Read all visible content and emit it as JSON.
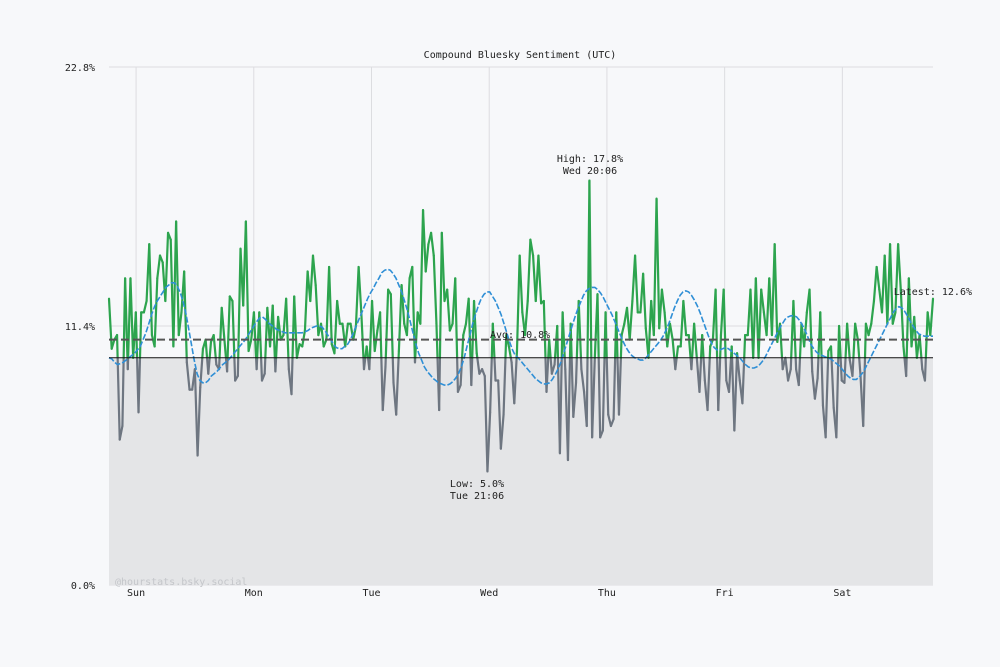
{
  "chart_data": {
    "type": "line",
    "title": "Compound Bluesky Sentiment (UTC)",
    "xlabel": "",
    "ylabel": "",
    "ylim": [
      0,
      22.8
    ],
    "y_ticks": [
      "0.0%",
      "11.4%",
      "22.8%"
    ],
    "x_ticks": [
      "Sun",
      "Mon",
      "Tue",
      "Wed",
      "Thu",
      "Fri",
      "Sat"
    ],
    "x_range_days": [
      -0.23,
      6.77
    ],
    "baseline_value": 10.0,
    "grid": true,
    "watermark": "@hourstats.bsky.social",
    "annotations": {
      "high": {
        "label": "High: 17.8%",
        "time": "Wed 20:06",
        "value": 17.8
      },
      "low": {
        "label": "Low: 5.0%",
        "time": "Tue 21:06",
        "value": 5.0
      },
      "avg": {
        "label": "Avg: 10.8%",
        "value": 10.8
      },
      "latest": {
        "label": "Latest: 12.6%",
        "value": 12.6
      }
    },
    "colors": {
      "above_baseline": "#2da44e",
      "below_baseline": "#6e7681",
      "moving_average": "#2f8fd6",
      "avg_line": "#555555",
      "baseline_line": "#111111",
      "fill": "#e4e5e7"
    },
    "series": [
      {
        "values": [
          12.6,
          10.4,
          10.8,
          11.0,
          6.4,
          7.0,
          13.5,
          9.5,
          13.5,
          10.0,
          12.0,
          7.6,
          12.0,
          12.0,
          12.5,
          15.0,
          11.0,
          10.5,
          13.5,
          14.5,
          14.2,
          12.5,
          15.5,
          15.2,
          10.5,
          16.0,
          11.0,
          12.0,
          13.8,
          9.8,
          8.6,
          8.6,
          9.5,
          5.7,
          8.7,
          10.4,
          10.8,
          9.3,
          10.7,
          11.0,
          9.7,
          9.5,
          12.2,
          10.8,
          9.4,
          12.7,
          12.5,
          9.0,
          9.2,
          14.8,
          12.3,
          16.0,
          10.3,
          10.8,
          12.0,
          9.5,
          12.0,
          9.0,
          9.3,
          12.2,
          10.5,
          12.3,
          9.4,
          11.8,
          10.8,
          11.0,
          12.6,
          9.5,
          8.4,
          12.7,
          10.0,
          10.6,
          10.5,
          11.2,
          13.8,
          12.5,
          14.5,
          13.2,
          11.0,
          11.5,
          10.5,
          10.8,
          14.0,
          10.6,
          10.2,
          12.5,
          11.5,
          11.5,
          10.5,
          11.5,
          11.5,
          10.8,
          11.4,
          14.0,
          12.0,
          9.5,
          10.5,
          9.5,
          12.5,
          10.3,
          11.2,
          12.0,
          7.7,
          9.6,
          13.0,
          12.8,
          8.9,
          7.5,
          10.3,
          13.2,
          11.5,
          11.0,
          13.5,
          14.0,
          9.8,
          12.0,
          11.5,
          16.5,
          13.8,
          15.0,
          15.5,
          14.5,
          11.5,
          7.7,
          15.5,
          12.5,
          13.0,
          11.2,
          11.5,
          13.5,
          8.5,
          8.8,
          11.0,
          11.5,
          12.6,
          8.8,
          12.5,
          10.2,
          9.3,
          9.5,
          9.2,
          5.0,
          7.6,
          11.5,
          9.0,
          9.0,
          6.0,
          7.5,
          11.0,
          10.5,
          9.8,
          8.0,
          10.3,
          14.5,
          12.0,
          11.0,
          12.5,
          15.2,
          14.5,
          12.5,
          14.5,
          12.4,
          12.5,
          8.5,
          10.8,
          9.3,
          9.7,
          11.4,
          5.8,
          12.0,
          9.5,
          5.5,
          11.5,
          7.4,
          8.9,
          12.5,
          9.5,
          8.5,
          7.0,
          17.8,
          6.5,
          10.0,
          12.8,
          6.5,
          6.8,
          12.0,
          7.5,
          7.0,
          7.3,
          12.0,
          7.5,
          11.0,
          11.5,
          12.2,
          10.8,
          12.5,
          14.5,
          12.0,
          12.0,
          13.7,
          11.3,
          10.0,
          12.5,
          11.0,
          17.0,
          11.3,
          13.0,
          12.0,
          10.5,
          11.5,
          10.8,
          9.5,
          10.5,
          10.5,
          12.5,
          11.0,
          11.0,
          9.5,
          11.5,
          10.0,
          8.5,
          11.0,
          9.0,
          7.7,
          10.5,
          10.8,
          13.0,
          7.7,
          11.0,
          13.0,
          9.0,
          8.5,
          10.5,
          6.8,
          10.2,
          9.0,
          8.0,
          11.0,
          11.0,
          13.0,
          10.0,
          13.5,
          10.0,
          13.0,
          12.0,
          11.0,
          13.5,
          11.0,
          15.0,
          10.7,
          11.5,
          9.5,
          10.0,
          9.0,
          9.5,
          12.5,
          9.5,
          8.8,
          11.5,
          10.5,
          12.0,
          13.0,
          9.4,
          8.2,
          9.1,
          12.0,
          7.9,
          6.5,
          10.3,
          10.5,
          7.8,
          6.5,
          11.4,
          9.0,
          8.9,
          11.5,
          9.9,
          9.2,
          11.5,
          10.8,
          9.2,
          7.0,
          11.5,
          11.0,
          11.5,
          12.5,
          14.0,
          13.0,
          12.0,
          14.5,
          11.5,
          15.0,
          11.5,
          12.0,
          15.0,
          13.0,
          10.5,
          9.2,
          13.5,
          10.5,
          11.8,
          10.0,
          11.0,
          9.5,
          9.0,
          12.0,
          11.0,
          12.6
        ],
        "moving_average": [
          10.0,
          9.95,
          9.8,
          9.7,
          9.75,
          9.8,
          9.9,
          10.0,
          10.1,
          10.2,
          10.35,
          10.5,
          10.8,
          11.1,
          11.5,
          11.9,
          12.25,
          12.5,
          12.7,
          12.9,
          13.1,
          13.2,
          13.3,
          13.3,
          13.15,
          12.9,
          12.5,
          12.0,
          11.3,
          10.6,
          9.9,
          9.3,
          9.0,
          8.9,
          8.9,
          9.0,
          9.2,
          9.3,
          9.4,
          9.55,
          9.7,
          9.8,
          9.9,
          10.05,
          10.2,
          10.35,
          10.5,
          10.65,
          10.8,
          11.0,
          11.2,
          11.4,
          11.6,
          11.75,
          11.8,
          11.7,
          11.55,
          11.45,
          11.35,
          11.25,
          11.2,
          11.15,
          11.1,
          11.1,
          11.1,
          11.1,
          11.1,
          11.1,
          11.1,
          11.15,
          11.2,
          11.3,
          11.35,
          11.4,
          11.4,
          11.35,
          11.2,
          11.0,
          10.8,
          10.6,
          10.45,
          10.4,
          10.4,
          10.5,
          10.6,
          10.8,
          11.1,
          11.4,
          11.7,
          12.0,
          12.3,
          12.6,
          12.85,
          13.05,
          13.3,
          13.5,
          13.75,
          13.85,
          13.9,
          13.85,
          13.7,
          13.5,
          13.2,
          12.9,
          12.5,
          12.1,
          11.6,
          11.1,
          10.6,
          10.2,
          9.9,
          9.6,
          9.4,
          9.25,
          9.1,
          9.0,
          8.9,
          8.85,
          8.8,
          8.8,
          8.85,
          8.95,
          9.1,
          9.3,
          9.6,
          10.0,
          10.5,
          11.0,
          11.5,
          11.9,
          12.3,
          12.6,
          12.8,
          12.9,
          12.9,
          12.7,
          12.5,
          12.2,
          11.9,
          11.5,
          11.1,
          10.7,
          10.35,
          10.1,
          10.0,
          9.85,
          9.7,
          9.55,
          9.4,
          9.25,
          9.1,
          9.0,
          8.9,
          8.85,
          8.85,
          8.9,
          9.05,
          9.25,
          9.5,
          9.8,
          10.2,
          10.6,
          11.0,
          11.4,
          11.8,
          12.15,
          12.45,
          12.75,
          12.95,
          13.05,
          13.1,
          13.1,
          13.0,
          12.85,
          12.65,
          12.4,
          12.15,
          11.9,
          11.6,
          11.3,
          11.0,
          10.7,
          10.45,
          10.25,
          10.1,
          10.0,
          9.95,
          9.9,
          9.9,
          10.0,
          10.15,
          10.3,
          10.45,
          10.6,
          10.75,
          10.95,
          11.2,
          11.5,
          11.85,
          12.2,
          12.5,
          12.75,
          12.9,
          12.95,
          12.9,
          12.75,
          12.55,
          12.3,
          12.0,
          11.65,
          11.3,
          10.95,
          10.65,
          10.45,
          10.35,
          10.35,
          10.4,
          10.45,
          10.4,
          10.3,
          10.2,
          10.1,
          10.0,
          9.85,
          9.7,
          9.6,
          9.55,
          9.55,
          9.6,
          9.7,
          9.85,
          10.05,
          10.3,
          10.55,
          10.8,
          11.05,
          11.3,
          11.5,
          11.7,
          11.8,
          11.85,
          11.85,
          11.8,
          11.65,
          11.45,
          11.2,
          10.9,
          10.6,
          10.4,
          10.25,
          10.15,
          10.1,
          10.05,
          10.0,
          9.95,
          9.85,
          9.75,
          9.65,
          9.5,
          9.35,
          9.2,
          9.1,
          9.05,
          9.05,
          9.15,
          9.3,
          9.5,
          9.75,
          10.0,
          10.25,
          10.5,
          10.75,
          11.0,
          11.25,
          11.5,
          11.75,
          12.0,
          12.15,
          12.25,
          12.2,
          12.05,
          11.85,
          11.6,
          11.4,
          11.2,
          11.05,
          11.0,
          10.95,
          10.95,
          10.95,
          10.95
        ]
      }
    ]
  }
}
